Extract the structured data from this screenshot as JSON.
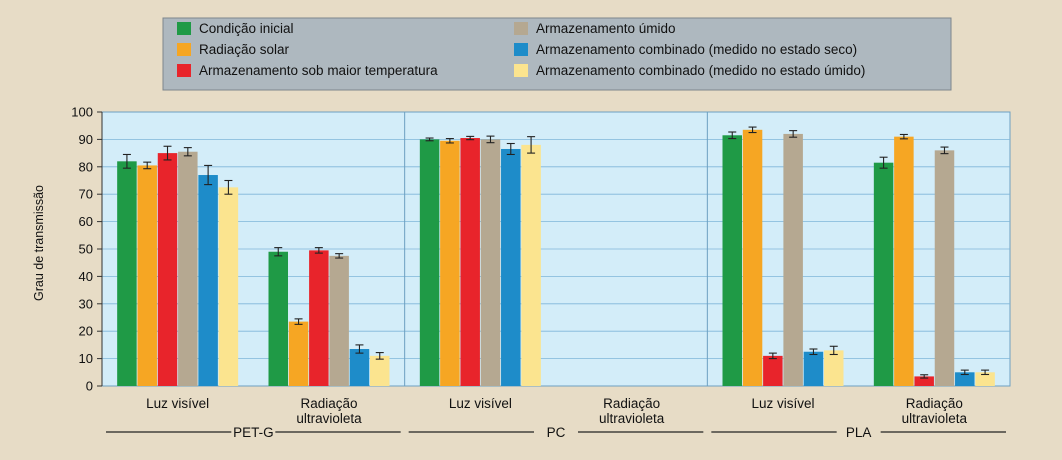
{
  "chart_data": {
    "type": "bar",
    "ylabel": "Grau de transmissão",
    "ylim": [
      0,
      100
    ],
    "yticks": [
      0,
      10,
      20,
      30,
      40,
      50,
      60,
      70,
      80,
      90,
      100
    ],
    "grid": true,
    "legend_position": "top-center",
    "series": [
      {
        "name": "Condição inicial",
        "color": "#1f9a46"
      },
      {
        "name": "Radiação solar",
        "color": "#f6a623"
      },
      {
        "name": "Armazenamento sob maior temperatura",
        "color": "#e8242b"
      },
      {
        "name": "Armazenamento úmido",
        "color": "#b5a891"
      },
      {
        "name": "Armazenamento combinado (medido no estado seco)",
        "color": "#1e8cc9"
      },
      {
        "name": "Armazenamento combinado (medido no estado úmido)",
        "color": "#fbe48f"
      }
    ],
    "groups": [
      {
        "name": "PET-G",
        "categories": [
          {
            "label": [
              "Luz visível"
            ],
            "values": [
              82,
              80.5,
              85,
              85.5,
              77,
              72.5
            ],
            "errors": [
              2.5,
              1.2,
              2.5,
              1.5,
              3.5,
              2.5
            ]
          },
          {
            "label": [
              "Radiação",
              "ultravioleta"
            ],
            "values": [
              49,
              23.5,
              49.5,
              47.5,
              13.5,
              11
            ],
            "errors": [
              1.5,
              1,
              1,
              0.8,
              1.5,
              1.2
            ]
          }
        ]
      },
      {
        "name": "PC",
        "categories": [
          {
            "label": [
              "Luz visível"
            ],
            "values": [
              90,
              89.5,
              90.5,
              90,
              86.5,
              88
            ],
            "errors": [
              0.5,
              0.8,
              0.6,
              1.2,
              2,
              3
            ]
          },
          {
            "label": [
              "Radiação",
              "ultravioleta"
            ],
            "values": [
              null,
              null,
              null,
              null,
              null,
              null
            ],
            "errors": [
              null,
              null,
              null,
              null,
              null,
              null
            ]
          }
        ]
      },
      {
        "name": "PLA",
        "categories": [
          {
            "label": [
              "Luz visível"
            ],
            "values": [
              91.5,
              93.5,
              11,
              null,
              12.5,
              13
            ],
            "errors": [
              1.2,
              1,
              1,
              null,
              1,
              1.5
            ],
            "extra": {
              "series": 3,
              "value": 92,
              "error": 1.2
            }
          },
          {
            "label": [
              "Radiação",
              "ultravioleta"
            ],
            "values": [
              81.5,
              91,
              3.5,
              86,
              5,
              5
            ],
            "errors": [
              2,
              0.8,
              0.6,
              1.2,
              0.8,
              0.8
            ]
          }
        ]
      }
    ]
  }
}
